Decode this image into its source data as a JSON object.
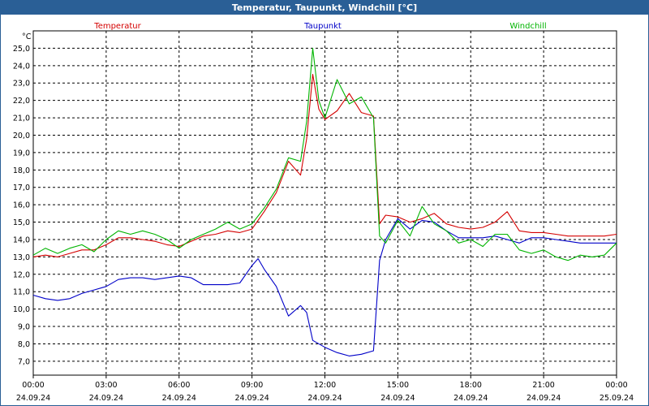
{
  "window": {
    "title": "Temperatur, Taupunkt, Windchill [°C]"
  },
  "chart_data": {
    "type": "line",
    "title": "Temperatur, Taupunkt, Windchill [°C]",
    "ylabel": "°C",
    "ylim": [
      6.2,
      26.0
    ],
    "xlim": [
      0,
      24
    ],
    "yticks": [
      7.0,
      8.0,
      9.0,
      10.0,
      11.0,
      12.0,
      13.0,
      14.0,
      15.0,
      16.0,
      17.0,
      18.0,
      19.0,
      20.0,
      21.0,
      22.0,
      23.0,
      24.0,
      25.0
    ],
    "ytick_labels": [
      "7,0",
      "8,0",
      "9,0",
      "10,0",
      "11,0",
      "12,0",
      "13,0",
      "14,0",
      "15,0",
      "16,0",
      "17,0",
      "18,0",
      "19,0",
      "20,0",
      "21,0",
      "22,0",
      "23,0",
      "24,0",
      "25,0"
    ],
    "xticks": [
      0,
      3,
      6,
      9,
      12,
      15,
      18,
      21,
      24
    ],
    "xtick_time_labels": [
      "00:00",
      "03:00",
      "06:00",
      "09:00",
      "12:00",
      "15:00",
      "18:00",
      "21:00",
      "00:00"
    ],
    "xtick_date_labels": [
      "24.09.24",
      "24.09.24",
      "24.09.24",
      "24.09.24",
      "24.09.24",
      "24.09.24",
      "24.09.24",
      "24.09.24",
      "25.09.24"
    ],
    "grid": true,
    "legend_position": "top",
    "series": [
      {
        "name": "Temperatur",
        "color": "#d40000",
        "x": [
          0,
          0.5,
          1,
          1.5,
          2,
          2.5,
          3,
          3.5,
          4,
          4.5,
          5,
          5.5,
          6,
          6.5,
          7,
          7.5,
          8,
          8.5,
          9,
          9.5,
          10,
          10.5,
          11,
          11.25,
          11.5,
          11.75,
          12,
          12.5,
          13,
          13.5,
          14,
          14.25,
          14.5,
          15,
          15.5,
          16,
          16.5,
          17,
          17.5,
          18,
          18.5,
          19,
          19.5,
          20,
          20.5,
          21,
          21.5,
          22,
          22.5,
          23,
          23.5,
          24
        ],
        "values": [
          13.0,
          13.1,
          13.0,
          13.2,
          13.4,
          13.4,
          13.7,
          14.1,
          14.1,
          14.0,
          13.9,
          13.7,
          13.6,
          13.9,
          14.2,
          14.3,
          14.5,
          14.4,
          14.6,
          15.6,
          16.7,
          18.5,
          17.7,
          19.8,
          23.5,
          21.5,
          20.9,
          21.4,
          22.4,
          21.3,
          21.1,
          14.9,
          15.4,
          15.3,
          15.0,
          15.2,
          15.5,
          14.9,
          14.7,
          14.6,
          14.7,
          15.0,
          15.6,
          14.5,
          14.4,
          14.4,
          14.3,
          14.2,
          14.2,
          14.2,
          14.2,
          14.3
        ]
      },
      {
        "name": "Taupunkt",
        "color": "#0000c8",
        "x": [
          0,
          0.5,
          1,
          1.5,
          2,
          2.5,
          3,
          3.5,
          4,
          4.5,
          5,
          5.5,
          6,
          6.5,
          7,
          7.5,
          8,
          8.5,
          9,
          9.25,
          9.5,
          10,
          10.5,
          11,
          11.25,
          11.5,
          12,
          12.5,
          13,
          13.5,
          14,
          14.25,
          14.5,
          15,
          15.5,
          16,
          16.5,
          17,
          17.5,
          18,
          18.5,
          19,
          19.5,
          20,
          20.5,
          21,
          21.5,
          22,
          22.5,
          23,
          23.5,
          24
        ],
        "values": [
          10.8,
          10.6,
          10.5,
          10.6,
          10.9,
          11.1,
          11.3,
          11.7,
          11.8,
          11.8,
          11.7,
          11.8,
          11.9,
          11.8,
          11.4,
          11.4,
          11.4,
          11.5,
          12.5,
          12.9,
          12.3,
          11.3,
          9.6,
          10.2,
          9.8,
          8.2,
          7.8,
          7.5,
          7.3,
          7.4,
          7.6,
          12.8,
          14.0,
          15.2,
          14.6,
          15.1,
          15.0,
          14.5,
          14.1,
          14.1,
          14.1,
          14.2,
          14.0,
          13.8,
          14.1,
          14.1,
          14.0,
          13.9,
          13.8,
          13.8,
          13.8,
          13.8
        ]
      },
      {
        "name": "Windchill",
        "color": "#00b400",
        "x": [
          0,
          0.5,
          1,
          1.5,
          2,
          2.5,
          3,
          3.5,
          4,
          4.5,
          5,
          5.5,
          6,
          6.5,
          7,
          7.5,
          8,
          8.5,
          9,
          9.5,
          10,
          10.5,
          11,
          11.25,
          11.5,
          11.75,
          12,
          12.5,
          13,
          13.5,
          14,
          14.25,
          14.5,
          15,
          15.5,
          16,
          16.5,
          17,
          17.5,
          18,
          18.5,
          19,
          19.5,
          20,
          20.5,
          21,
          21.5,
          22,
          22.5,
          23,
          23.5,
          24
        ],
        "values": [
          13.1,
          13.5,
          13.2,
          13.5,
          13.7,
          13.3,
          14.0,
          14.5,
          14.3,
          14.5,
          14.3,
          14.0,
          13.5,
          14.0,
          14.3,
          14.6,
          15.0,
          14.6,
          14.9,
          15.8,
          16.9,
          18.7,
          18.5,
          20.8,
          25.0,
          22.0,
          21.0,
          23.2,
          21.8,
          22.2,
          21.0,
          14.2,
          13.8,
          15.1,
          14.2,
          15.9,
          14.9,
          14.5,
          13.8,
          14.0,
          13.6,
          14.3,
          14.3,
          13.4,
          13.2,
          13.4,
          13.0,
          12.8,
          13.1,
          13.0,
          13.1,
          13.8
        ]
      }
    ]
  }
}
